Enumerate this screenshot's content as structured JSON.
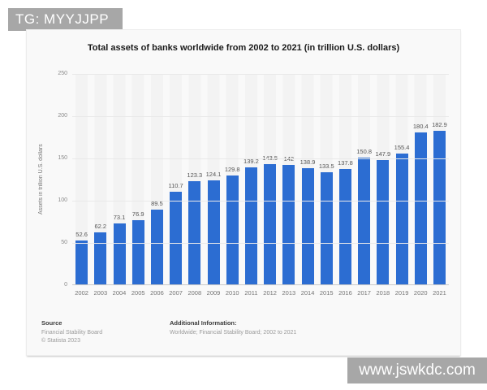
{
  "watermarks": {
    "top_label": "TG: MYYJJPP",
    "bottom_label": "www.jswkdc.com",
    "box_color": "#a7a7a7",
    "text_color": "#ffffff"
  },
  "chart_data": {
    "type": "bar",
    "title": "Total assets of banks worldwide from 2002 to 2021 (in trillion U.S. dollars)",
    "categories": [
      "2002",
      "2003",
      "2004",
      "2005",
      "2006",
      "2007",
      "2008",
      "2009",
      "2010",
      "2011",
      "2012",
      "2013",
      "2014",
      "2015",
      "2016",
      "2017",
      "2018",
      "2019",
      "2020",
      "2021"
    ],
    "values": [
      52.6,
      62.2,
      73.1,
      76.9,
      89.5,
      110.7,
      123.3,
      124.1,
      129.8,
      139.2,
      143.5,
      142,
      138.9,
      133.5,
      137.8,
      150.8,
      147.9,
      155.4,
      180.4,
      182.9
    ],
    "value_labels": [
      "52.6",
      "62.2",
      "73.1",
      "76.9",
      "89.5",
      "110.7",
      "123.3",
      "124.1",
      "129.8",
      "139.2",
      "143.5",
      "142",
      "138.9",
      "133.5",
      "137.8",
      "150.8",
      "147.9",
      "155.4",
      "180.4",
      "182.9"
    ],
    "xlabel": "",
    "ylabel": "Assets in trillion U.S. dollars",
    "ylim": [
      0,
      250
    ],
    "yticks": [
      0,
      50,
      100,
      150,
      200,
      250
    ],
    "grid": true,
    "legend": false,
    "bar_color": "#2c6dd2"
  },
  "footer": {
    "source_heading": "Source",
    "source_lines": [
      "Financial Stability Board",
      "© Statista 2023"
    ],
    "additional_heading": "Additional Information:",
    "additional_text": "Worldwide; Financial Stability Board; 2002 to 2021"
  }
}
